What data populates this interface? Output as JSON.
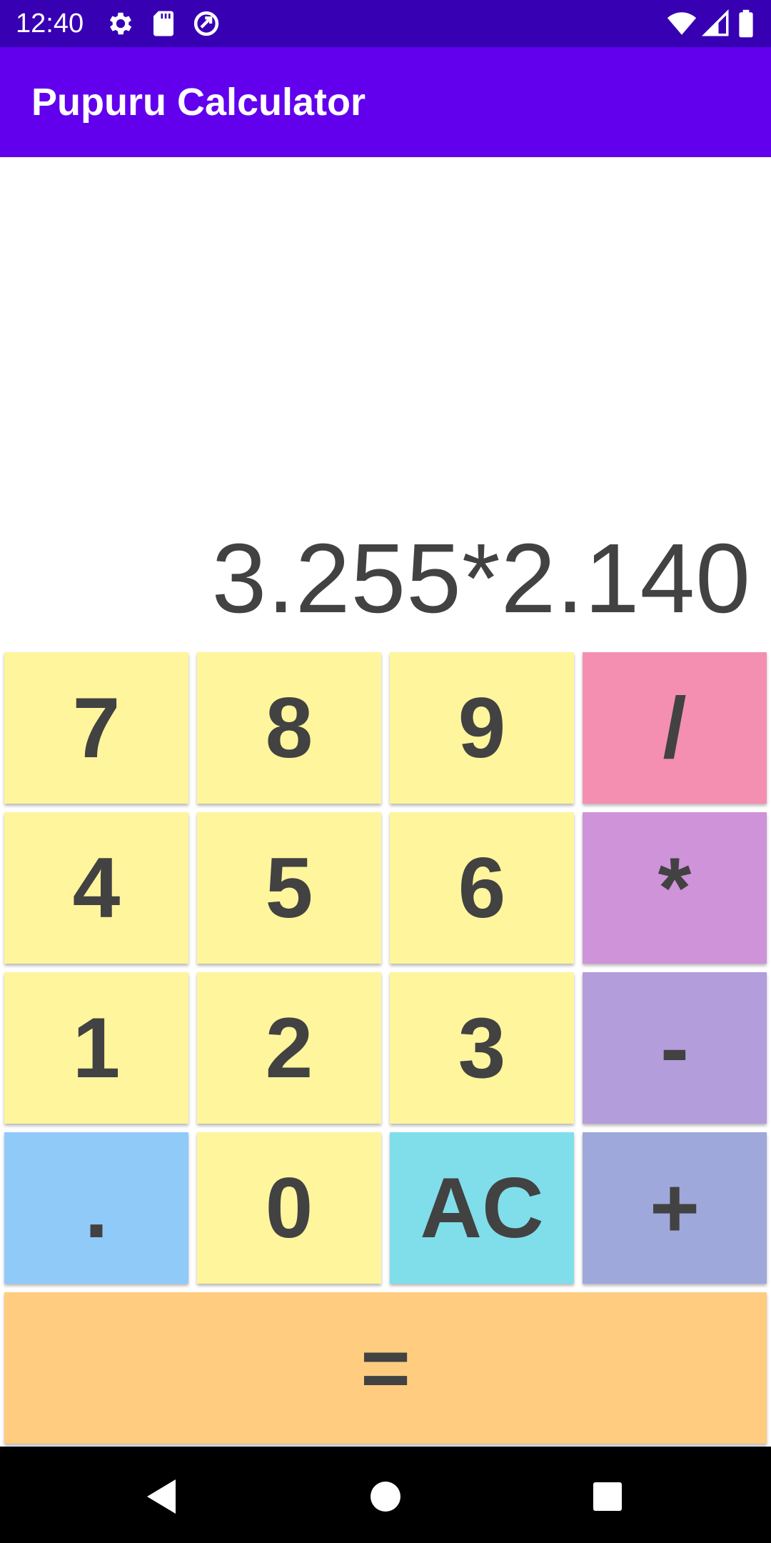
{
  "status_bar": {
    "time": "12:40",
    "left_icons": [
      "gear-icon",
      "sd-card-icon",
      "data-saver-icon"
    ],
    "right_icons": [
      "wifi-icon",
      "cellular-signal-icon",
      "battery-icon"
    ],
    "background": "#3700b3"
  },
  "app_bar": {
    "title": "Pupuru Calculator",
    "background": "#6200ee"
  },
  "display": {
    "expression": "3.255*2.140"
  },
  "keys": {
    "seven": "7",
    "eight": "8",
    "nine": "9",
    "divide": "/",
    "four": "4",
    "five": "5",
    "six": "6",
    "multiply": "*",
    "one": "1",
    "two": "2",
    "three": "3",
    "subtract": "-",
    "dot": ".",
    "zero": "0",
    "clear": "AC",
    "add": "+",
    "equals": "="
  },
  "colors": {
    "digit": "#fff59d",
    "divide": "#f48fb1",
    "multiply": "#ce93d8",
    "subtract": "#b39ddb",
    "add": "#9fa8da",
    "dot": "#90caf9",
    "clear": "#80deea",
    "equals": "#ffcc80",
    "key_text": "#424242"
  },
  "nav_bar": {
    "buttons": [
      "back-icon",
      "home-icon",
      "recents-icon"
    ]
  }
}
